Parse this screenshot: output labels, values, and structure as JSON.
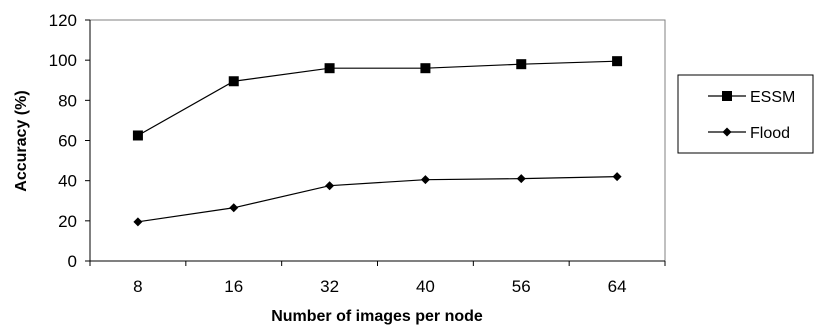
{
  "chart_data": {
    "type": "line",
    "categories": [
      "8",
      "16",
      "32",
      "40",
      "56",
      "64"
    ],
    "series": [
      {
        "name": "ESSM",
        "marker": "square",
        "values": [
          62.5,
          89.5,
          96,
          96,
          98,
          99.5
        ]
      },
      {
        "name": "Flood",
        "marker": "diamond",
        "values": [
          19.5,
          26.5,
          37.5,
          40.5,
          41,
          42
        ]
      }
    ],
    "xlabel": "Number of images per node",
    "ylabel": "Accuracy (%)",
    "ylim": [
      0,
      120
    ],
    "yticks": [
      0,
      20,
      40,
      60,
      80,
      100,
      120
    ],
    "grid": false,
    "legend_position": "right",
    "colors": {
      "line": "#000000",
      "background": "#ffffff"
    }
  }
}
